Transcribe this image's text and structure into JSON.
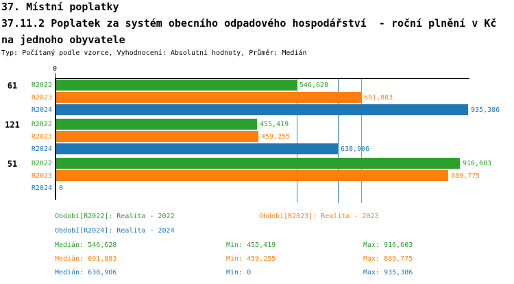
{
  "header": {
    "title": "37. Místní poplatky",
    "subtitle_line1": "37.11.2 Poplatek za systém obecního odpadového hospodářství  - roční plnění v Kč",
    "subtitle_line2": "na jednoho obyvatele",
    "meta": "Typ: Počítaný podle vzorce, Vyhodnocení: Absolutní hodnoty, Průměr: Medián"
  },
  "chart_data": {
    "type": "bar",
    "orientation": "horizontal",
    "x_axis": {
      "min": 0,
      "max": 935386,
      "zero_label": "0"
    },
    "grid": false,
    "series": [
      {
        "key": "R2022",
        "label": "Realita - 2022",
        "color": "#2ca02c",
        "median": 546628,
        "min": 455419,
        "max": 916603
      },
      {
        "key": "R2023",
        "label": "Realita - 2023",
        "color": "#ff7f0e",
        "median": 691883,
        "min": 459255,
        "max": 889775
      },
      {
        "key": "R2024",
        "label": "Realita - 2024",
        "color": "#1f77b4",
        "median": 638906,
        "min": 0,
        "max": 935386
      }
    ],
    "groups": [
      {
        "label": "61",
        "bars": [
          {
            "series": "R2022",
            "value": 546628,
            "display": "546,628"
          },
          {
            "series": "R2023",
            "value": 691883,
            "display": "691,883"
          },
          {
            "series": "R2024",
            "value": 935386,
            "display": "935,386"
          }
        ]
      },
      {
        "label": "121",
        "bars": [
          {
            "series": "R2022",
            "value": 455419,
            "display": "455,419"
          },
          {
            "series": "R2023",
            "value": 459255,
            "display": "459,255"
          },
          {
            "series": "R2024",
            "value": 638906,
            "display": "638,906"
          }
        ]
      },
      {
        "label": "51",
        "bars": [
          {
            "series": "R2022",
            "value": 916603,
            "display": "916,603"
          },
          {
            "series": "R2023",
            "value": 889775,
            "display": "889,775"
          },
          {
            "series": "R2024",
            "value": 0,
            "display": "0"
          }
        ]
      }
    ],
    "median_lines": [
      {
        "value": 546628,
        "color": "#2ca02c"
      },
      {
        "value": 691883,
        "color": "#ff7f0e"
      },
      {
        "value": 638906,
        "color": "#1f77b4"
      }
    ]
  },
  "legend": {
    "items": [
      {
        "text": "Období[R2022]: Realita - 2022",
        "color": "#2ca02c"
      },
      {
        "text": "Období[R2023]: Realita - 2023",
        "color": "#ff7f0e"
      },
      {
        "text": "Období[R2024]: Realita - 2024",
        "color": "#1f77b4"
      }
    ]
  },
  "stats": {
    "rows": [
      {
        "color": "#2ca02c",
        "median": "Medián: 546,628",
        "min": "Min: 455,419",
        "max": "Max: 916,603"
      },
      {
        "color": "#ff7f0e",
        "median": "Medián: 691,883",
        "min": "Min: 459,255",
        "max": "Max: 889,775"
      },
      {
        "color": "#1f77b4",
        "median": "Medián: 638,906",
        "min": "Min: 0",
        "max": "Max: 935,386"
      }
    ]
  }
}
